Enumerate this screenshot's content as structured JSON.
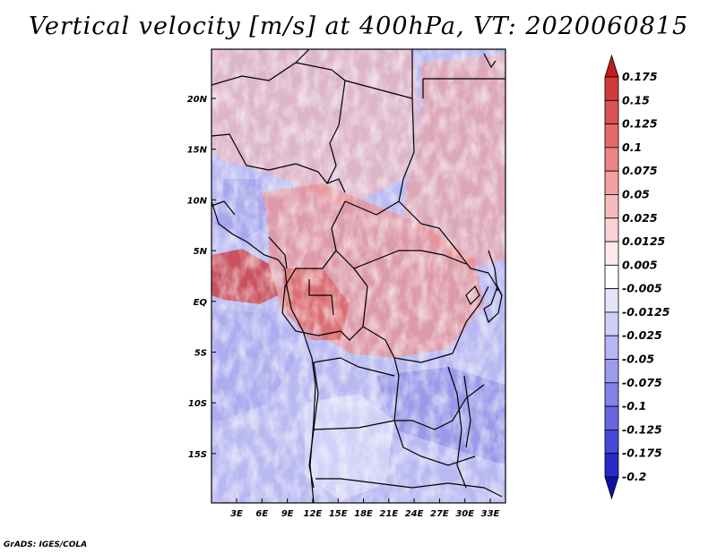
{
  "title": "Vertical velocity [m/s] at 400hPa, VT: 2020060815",
  "map": {
    "lat_labels": [
      "20N",
      "15N",
      "10N",
      "5N",
      "EQ",
      "5S",
      "10S",
      "15S"
    ],
    "lon_labels": [
      "3E",
      "6E",
      "9E",
      "12E",
      "15E",
      "18E",
      "21E",
      "24E",
      "27E",
      "30E",
      "33E"
    ]
  },
  "colorbar": {
    "labels": [
      "0.175",
      "0.15",
      "0.125",
      "0.1",
      "0.075",
      "0.05",
      "0.025",
      "0.0125",
      "0.005",
      "-0.005",
      "-0.0125",
      "-0.025",
      "-0.05",
      "-0.075",
      "-0.1",
      "-0.125",
      "-0.175",
      "-0.2"
    ],
    "colors": [
      "#c01c1c",
      "#d23a3a",
      "#dc5252",
      "#e46a6a",
      "#ec8686",
      "#f2a2a2",
      "#f6bcbc",
      "#fad4d4",
      "#fde9e9",
      "#ffffff",
      "#e4e4fb",
      "#cfcff8",
      "#b6b6f4",
      "#9c9cef",
      "#8282ea",
      "#6666e2",
      "#4848d8",
      "#2a2ac8",
      "#1010a8"
    ]
  },
  "footer": "GrADS: IGES/COLA"
}
